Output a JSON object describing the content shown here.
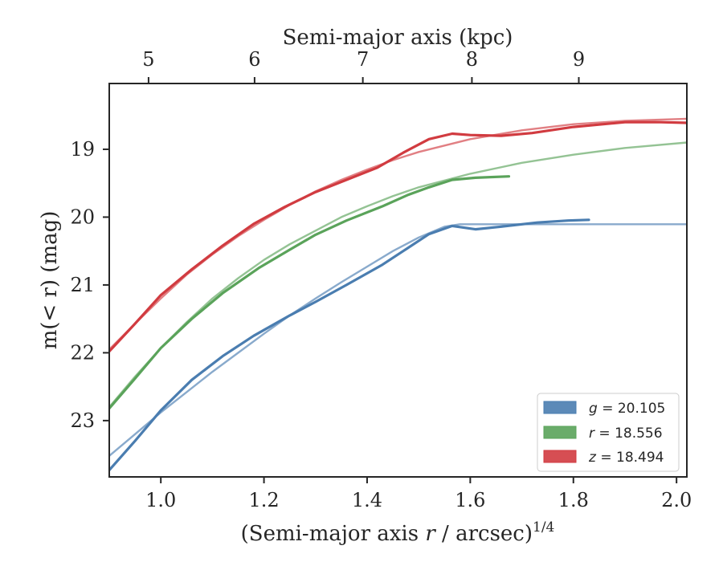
{
  "chart_data": {
    "type": "line",
    "xlabel": "(Semi-major axis r / arcsec)",
    "xlabel_parts": {
      "prefix": "(Semi-major axis ",
      "var": "r",
      "suffix": " / arcsec)",
      "sup": "1/4"
    },
    "ylabel": "m(< r) (mag)",
    "top_xlabel": "Semi-major axis (kpc)",
    "xlim": [
      0.9,
      2.02
    ],
    "ylim": [
      23.83,
      18.03
    ],
    "y_inverted": true,
    "x_ticks": [
      "1.0",
      "1.2",
      "1.4",
      "1.6",
      "1.8",
      "2.0"
    ],
    "y_ticks": [
      "19",
      "20",
      "21",
      "22",
      "23"
    ],
    "top_ticks": [
      {
        "label": "5",
        "x": 0.9762
      },
      {
        "label": "6",
        "x": 1.1818
      },
      {
        "label": "7",
        "x": 1.3917
      },
      {
        "label": "8",
        "x": 1.6032
      },
      {
        "label": "9",
        "x": 1.8105
      }
    ],
    "legend_position": "lower-right",
    "series": [
      {
        "name": "g = 20.105",
        "band": "g",
        "value": "20.105",
        "color": "#4a7db0",
        "data": [
          [
            0.9,
            23.73
          ],
          [
            0.95,
            23.3
          ],
          [
            1.0,
            22.85
          ],
          [
            1.06,
            22.4
          ],
          [
            1.12,
            22.05
          ],
          [
            1.18,
            21.75
          ],
          [
            1.25,
            21.45
          ],
          [
            1.3,
            21.25
          ],
          [
            1.36,
            21.0
          ],
          [
            1.43,
            20.7
          ],
          [
            1.47,
            20.5
          ],
          [
            1.52,
            20.25
          ],
          [
            1.565,
            20.13
          ],
          [
            1.61,
            20.18
          ],
          [
            1.66,
            20.14
          ],
          [
            1.73,
            20.08
          ],
          [
            1.79,
            20.05
          ],
          [
            1.83,
            20.04
          ]
        ],
        "fit": [
          [
            0.9,
            23.52
          ],
          [
            0.95,
            23.2
          ],
          [
            1.0,
            22.88
          ],
          [
            1.05,
            22.58
          ],
          [
            1.1,
            22.28
          ],
          [
            1.15,
            22.0
          ],
          [
            1.2,
            21.72
          ],
          [
            1.25,
            21.45
          ],
          [
            1.3,
            21.2
          ],
          [
            1.35,
            20.96
          ],
          [
            1.4,
            20.73
          ],
          [
            1.45,
            20.5
          ],
          [
            1.5,
            20.3
          ],
          [
            1.55,
            20.14
          ],
          [
            1.58,
            20.105
          ],
          [
            1.7,
            20.105
          ],
          [
            1.85,
            20.105
          ],
          [
            2.02,
            20.105
          ]
        ]
      },
      {
        "name": "r = 18.556",
        "band": "r",
        "value": "18.556",
        "color": "#5aa35a",
        "data": [
          [
            0.9,
            22.82
          ],
          [
            0.95,
            22.38
          ],
          [
            1.0,
            21.93
          ],
          [
            1.06,
            21.5
          ],
          [
            1.12,
            21.12
          ],
          [
            1.19,
            20.75
          ],
          [
            1.25,
            20.48
          ],
          [
            1.3,
            20.26
          ],
          [
            1.36,
            20.05
          ],
          [
            1.43,
            19.84
          ],
          [
            1.48,
            19.67
          ],
          [
            1.52,
            19.56
          ],
          [
            1.565,
            19.45
          ],
          [
            1.61,
            19.42
          ],
          [
            1.675,
            19.4
          ]
        ],
        "fit": [
          [
            0.9,
            22.8
          ],
          [
            0.95,
            22.35
          ],
          [
            1.0,
            21.93
          ],
          [
            1.05,
            21.55
          ],
          [
            1.1,
            21.2
          ],
          [
            1.15,
            20.9
          ],
          [
            1.2,
            20.63
          ],
          [
            1.25,
            20.4
          ],
          [
            1.3,
            20.2
          ],
          [
            1.35,
            20.0
          ],
          [
            1.4,
            19.84
          ],
          [
            1.45,
            19.69
          ],
          [
            1.5,
            19.56
          ],
          [
            1.6,
            19.36
          ],
          [
            1.7,
            19.2
          ],
          [
            1.8,
            19.08
          ],
          [
            1.9,
            18.98
          ],
          [
            2.02,
            18.9
          ]
        ]
      },
      {
        "name": "z = 18.494",
        "band": "z",
        "value": "18.494",
        "color": "#d13b40",
        "data": [
          [
            0.9,
            21.98
          ],
          [
            0.95,
            21.57
          ],
          [
            1.0,
            21.15
          ],
          [
            1.06,
            20.77
          ],
          [
            1.12,
            20.42
          ],
          [
            1.18,
            20.1
          ],
          [
            1.24,
            19.85
          ],
          [
            1.3,
            19.63
          ],
          [
            1.36,
            19.45
          ],
          [
            1.42,
            19.27
          ],
          [
            1.47,
            19.05
          ],
          [
            1.52,
            18.85
          ],
          [
            1.565,
            18.77
          ],
          [
            1.6,
            18.79
          ],
          [
            1.66,
            18.8
          ],
          [
            1.72,
            18.76
          ],
          [
            1.8,
            18.67
          ],
          [
            1.9,
            18.6
          ],
          [
            1.97,
            18.6
          ],
          [
            2.02,
            18.61
          ]
        ],
        "fit": [
          [
            0.9,
            21.95
          ],
          [
            0.95,
            21.57
          ],
          [
            1.0,
            21.2
          ],
          [
            1.05,
            20.85
          ],
          [
            1.1,
            20.55
          ],
          [
            1.15,
            20.28
          ],
          [
            1.2,
            20.04
          ],
          [
            1.25,
            19.82
          ],
          [
            1.3,
            19.62
          ],
          [
            1.35,
            19.45
          ],
          [
            1.4,
            19.3
          ],
          [
            1.45,
            19.16
          ],
          [
            1.5,
            19.04
          ],
          [
            1.6,
            18.85
          ],
          [
            1.7,
            18.72
          ],
          [
            1.8,
            18.63
          ],
          [
            1.9,
            18.58
          ],
          [
            2.02,
            18.55
          ]
        ]
      }
    ]
  }
}
